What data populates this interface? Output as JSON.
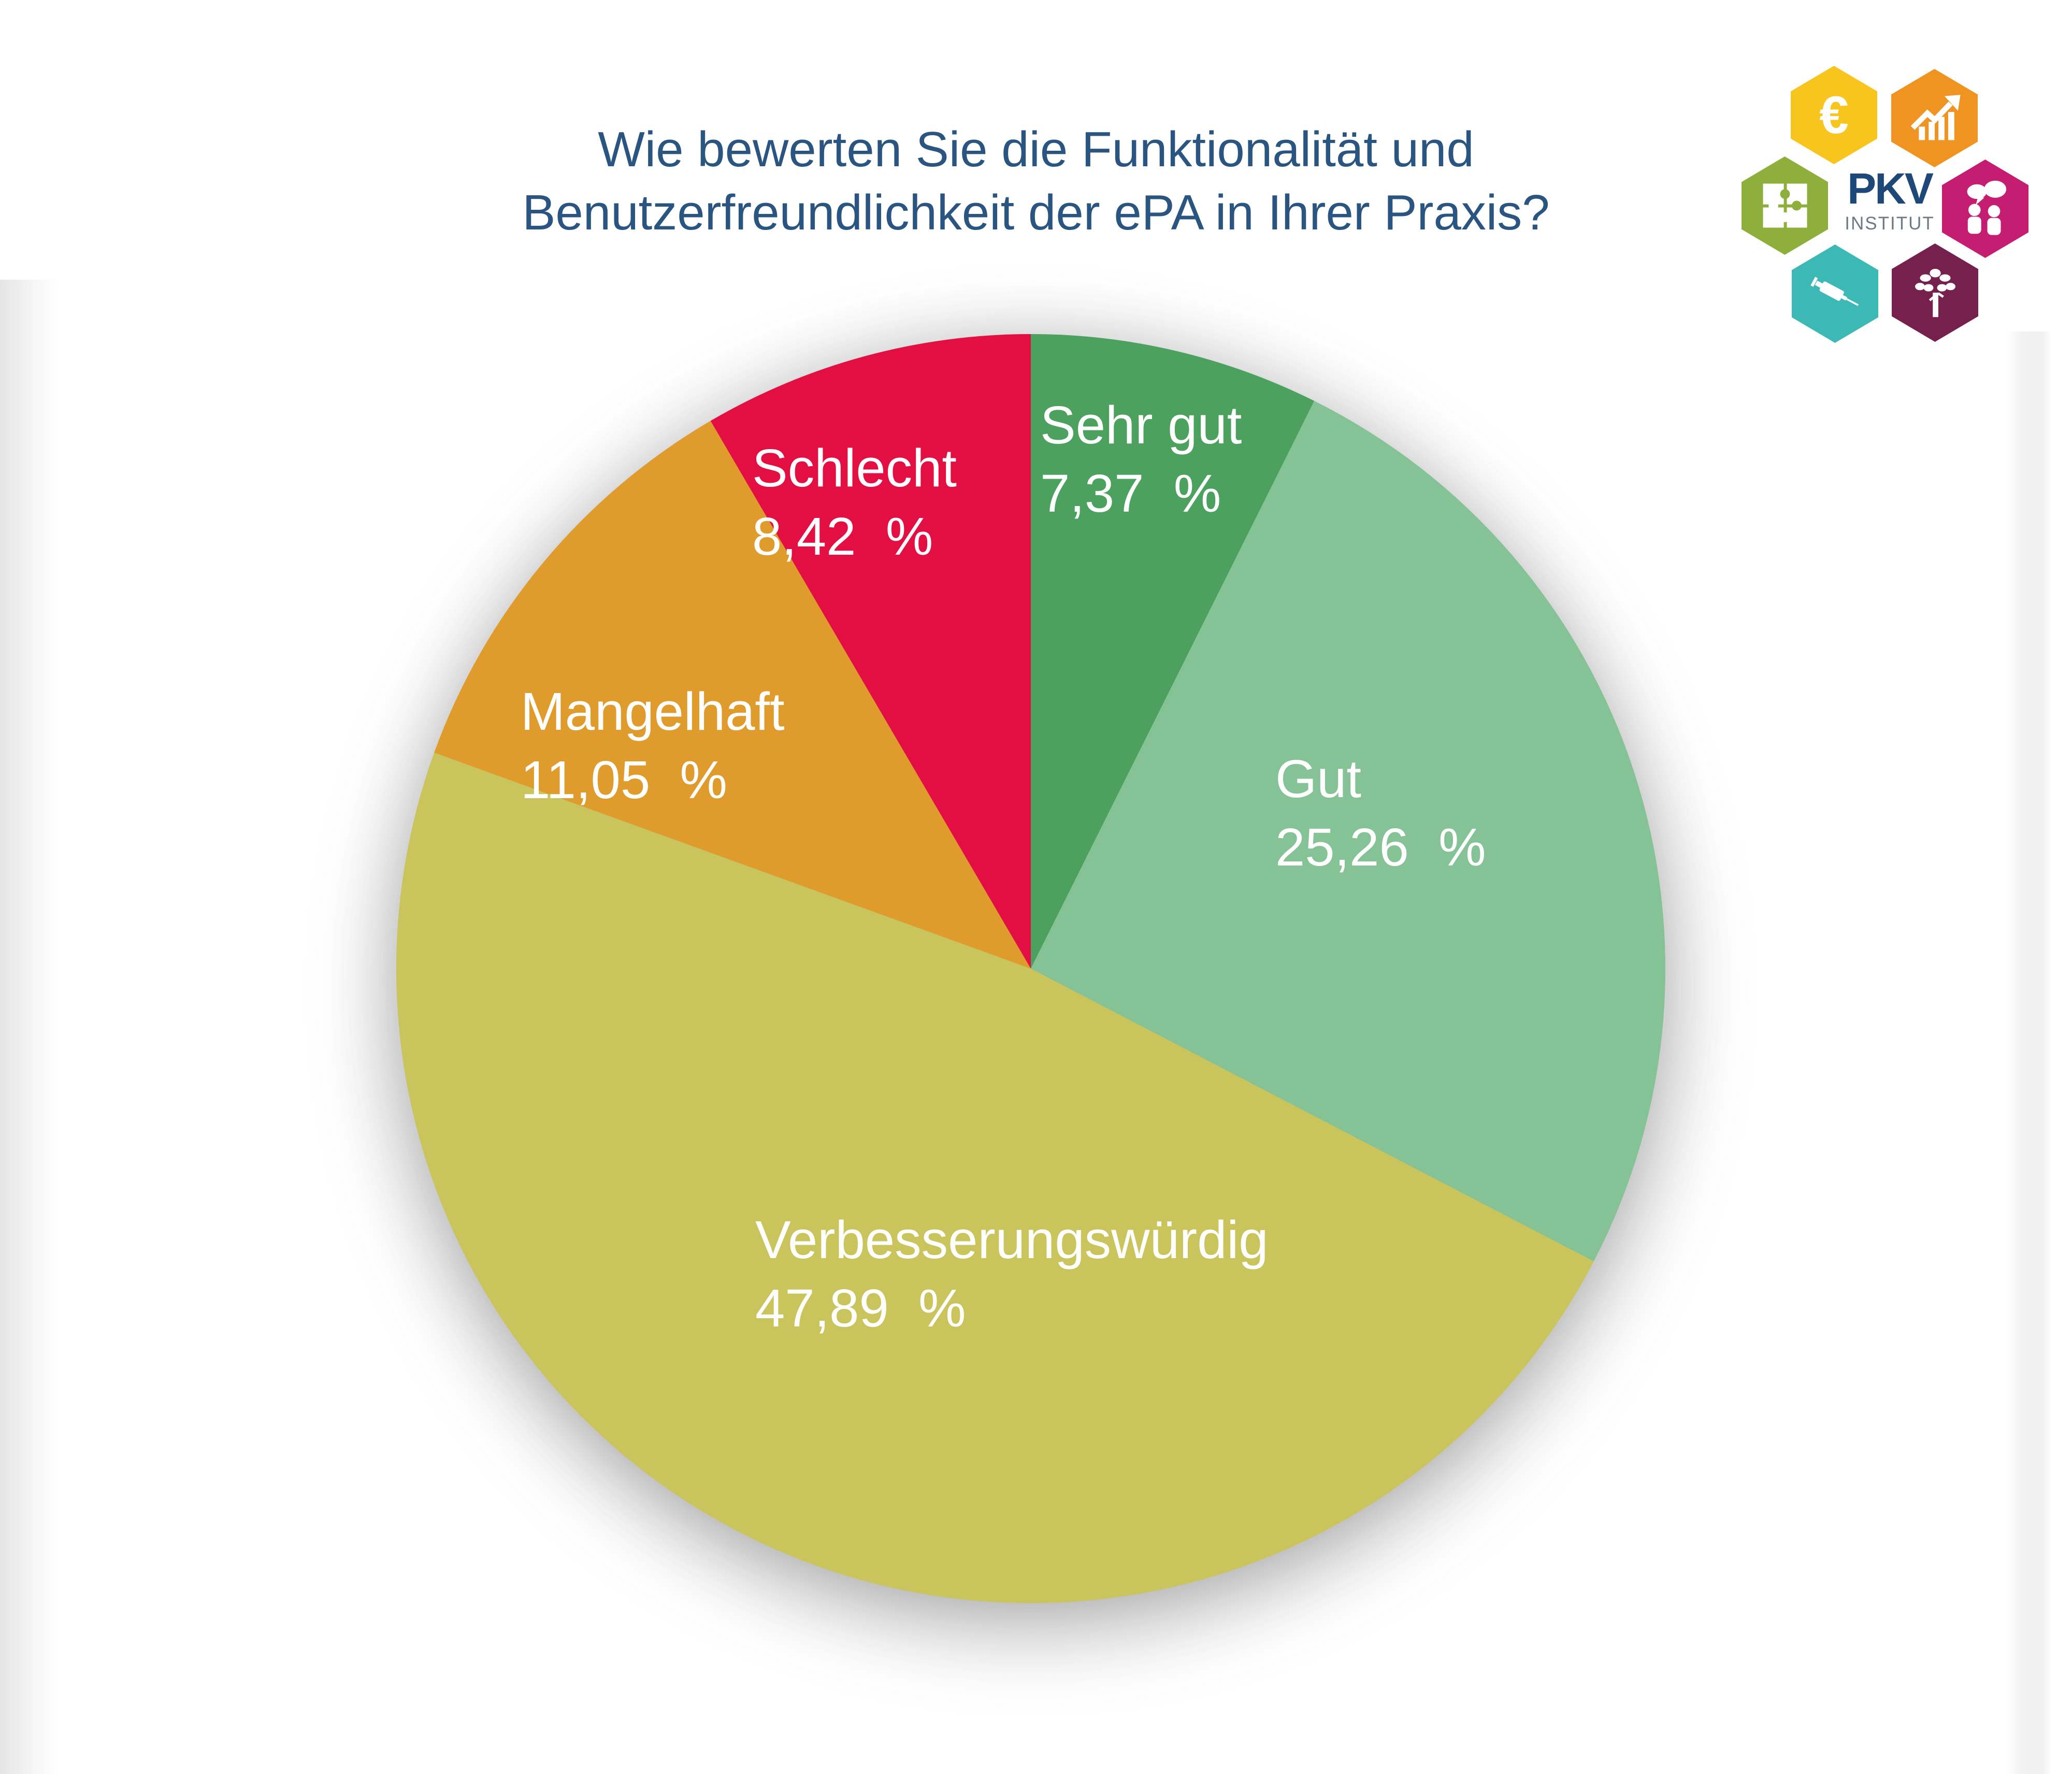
{
  "page": {
    "background": "#ffffff"
  },
  "title": {
    "line1": "Wie bewerten Sie die Funktionalität und",
    "line2": "Benutzerfreundlichkeit der ePA in Ihrer Praxis?",
    "color": "#2a5580"
  },
  "logo": {
    "brand": "PKV",
    "brand_sub": "INSTITUT",
    "hexagons": [
      {
        "name": "euro",
        "color": "#f7c51e",
        "icon": "euro-icon"
      },
      {
        "name": "growth",
        "color": "#ef9420",
        "icon": "growth-chart-icon"
      },
      {
        "name": "puzzle",
        "color": "#8faf3c",
        "icon": "puzzle-icon"
      },
      {
        "name": "dialog",
        "color": "#c41d72",
        "icon": "people-dialog-icon"
      },
      {
        "name": "syringe",
        "color": "#3cb9b4",
        "icon": "syringe-icon"
      },
      {
        "name": "tree",
        "color": "#76204d",
        "icon": "tree-icon"
      }
    ]
  },
  "chart_data": {
    "type": "pie",
    "title": "Wie bewerten Sie die Funktionalität und Benutzerfreundlichkeit der ePA in Ihrer Praxis?",
    "start_angle_deg": 0,
    "direction": "clockwise",
    "legend": "none",
    "labels_on_slices": true,
    "label_color": "#ffffff",
    "slices": [
      {
        "label": "Sehr gut",
        "value": 7.37,
        "value_label": "7,37  %",
        "color": "#4BA15D"
      },
      {
        "label": "Gut",
        "value": 25.26,
        "value_label": "25,26  %",
        "color": "#85C295"
      },
      {
        "label": "Verbesserungswürdig",
        "value": 47.89,
        "value_label": "47,89  %",
        "color": "#CAC45C"
      },
      {
        "label": "Mangelhaft",
        "value": 11.05,
        "value_label": "11,05  %",
        "color": "#DF9B2B"
      },
      {
        "label": "Schlecht",
        "value": 8.42,
        "value_label": "8,42  %",
        "color": "#E30F42"
      }
    ]
  }
}
